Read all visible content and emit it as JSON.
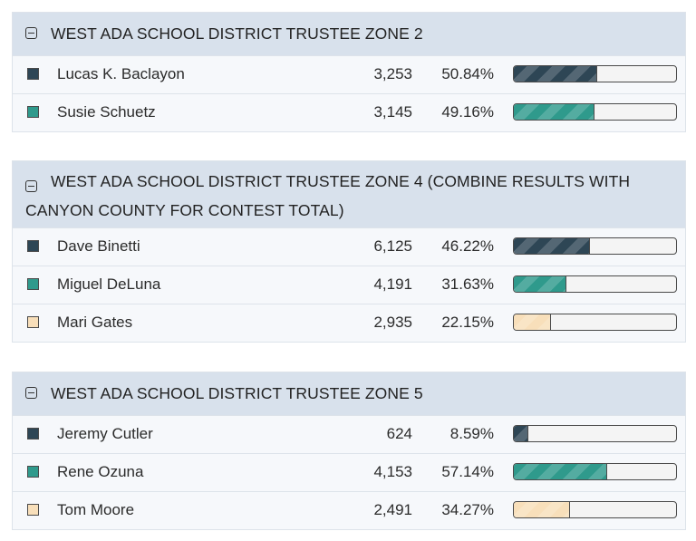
{
  "colors": {
    "dark": "#2e4655",
    "teal": "#2f9a8c",
    "peach": "#f8dfba"
  },
  "contests": [
    {
      "title": "WEST ADA SCHOOL DISTRICT TRUSTEE ZONE 2",
      "candidates": [
        {
          "name": "Lucas K. Baclayon",
          "votes": "3,253",
          "percent": "50.84%",
          "share": 50.84,
          "color": "dark"
        },
        {
          "name": "Susie Schuetz",
          "votes": "3,145",
          "percent": "49.16%",
          "share": 49.16,
          "color": "teal"
        }
      ]
    },
    {
      "title": "WEST ADA SCHOOL DISTRICT TRUSTEE ZONE 4 (COMBINE RESULTS WITH CANYON COUNTY FOR CONTEST TOTAL)",
      "candidates": [
        {
          "name": "Dave Binetti",
          "votes": "6,125",
          "percent": "46.22%",
          "share": 46.22,
          "color": "dark"
        },
        {
          "name": "Miguel DeLuna",
          "votes": "4,191",
          "percent": "31.63%",
          "share": 31.63,
          "color": "teal"
        },
        {
          "name": "Mari Gates",
          "votes": "2,935",
          "percent": "22.15%",
          "share": 22.15,
          "color": "peach"
        }
      ]
    },
    {
      "title": "WEST ADA SCHOOL DISTRICT TRUSTEE ZONE 5",
      "candidates": [
        {
          "name": "Jeremy Cutler",
          "votes": "624",
          "percent": "8.59%",
          "share": 8.59,
          "color": "dark"
        },
        {
          "name": "Rene Ozuna",
          "votes": "4,153",
          "percent": "57.14%",
          "share": 57.14,
          "color": "teal"
        },
        {
          "name": "Tom Moore",
          "votes": "2,491",
          "percent": "34.27%",
          "share": 34.27,
          "color": "peach"
        }
      ]
    }
  ]
}
